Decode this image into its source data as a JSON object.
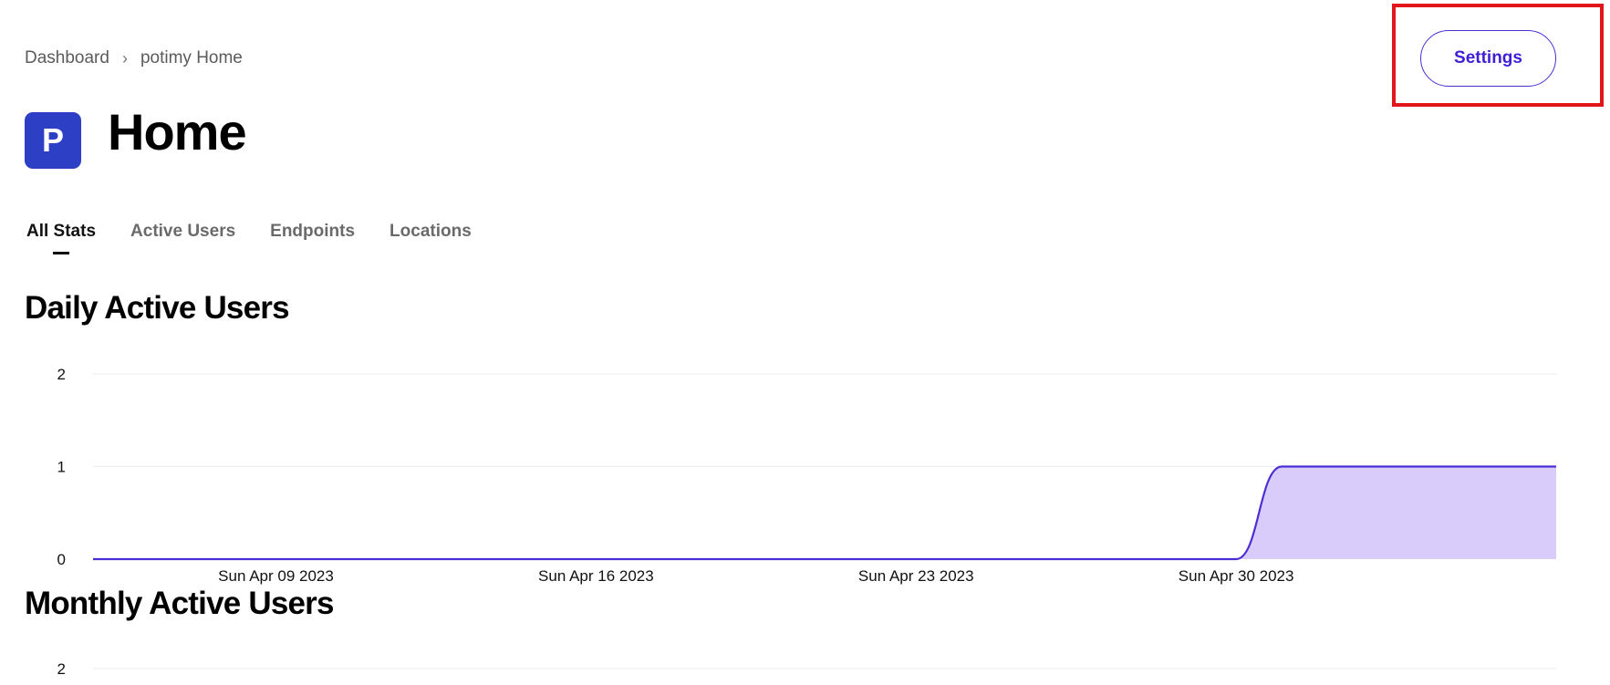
{
  "breadcrumb": {
    "root": "Dashboard",
    "separator": "›",
    "current": "potimy Home"
  },
  "header": {
    "avatar_letter": "P",
    "title": "Home",
    "settings_label": "Settings"
  },
  "tabs": [
    {
      "label": "All Stats",
      "active": true
    },
    {
      "label": "Active Users",
      "active": false
    },
    {
      "label": "Endpoints",
      "active": false
    },
    {
      "label": "Locations",
      "active": false
    }
  ],
  "sections": {
    "daily_title": "Daily Active Users",
    "monthly_title": "Monthly Active Users"
  },
  "colors": {
    "accent": "#4b2ed6",
    "avatar_bg": "#2d3fc4",
    "area_fill": "#d9ccfa",
    "highlight": "#e0161b"
  },
  "chart_data": [
    {
      "type": "area",
      "title": "Daily Active Users",
      "x": [
        "2023-04-05",
        "2023-04-30",
        "2023-05-01",
        "2023-05-07"
      ],
      "values": [
        0,
        0,
        1,
        1
      ],
      "x_tick_labels": [
        "Sun Apr 09 2023",
        "Sun Apr 16 2023",
        "Sun Apr 23 2023",
        "Sun Apr 30 2023"
      ],
      "y_ticks": [
        "0",
        "1",
        "2"
      ],
      "ylim": [
        0,
        2
      ],
      "grid": true
    },
    {
      "type": "area",
      "title": "Monthly Active Users",
      "y_ticks": [
        "2"
      ],
      "ylim": [
        0,
        2
      ],
      "grid": true
    }
  ]
}
